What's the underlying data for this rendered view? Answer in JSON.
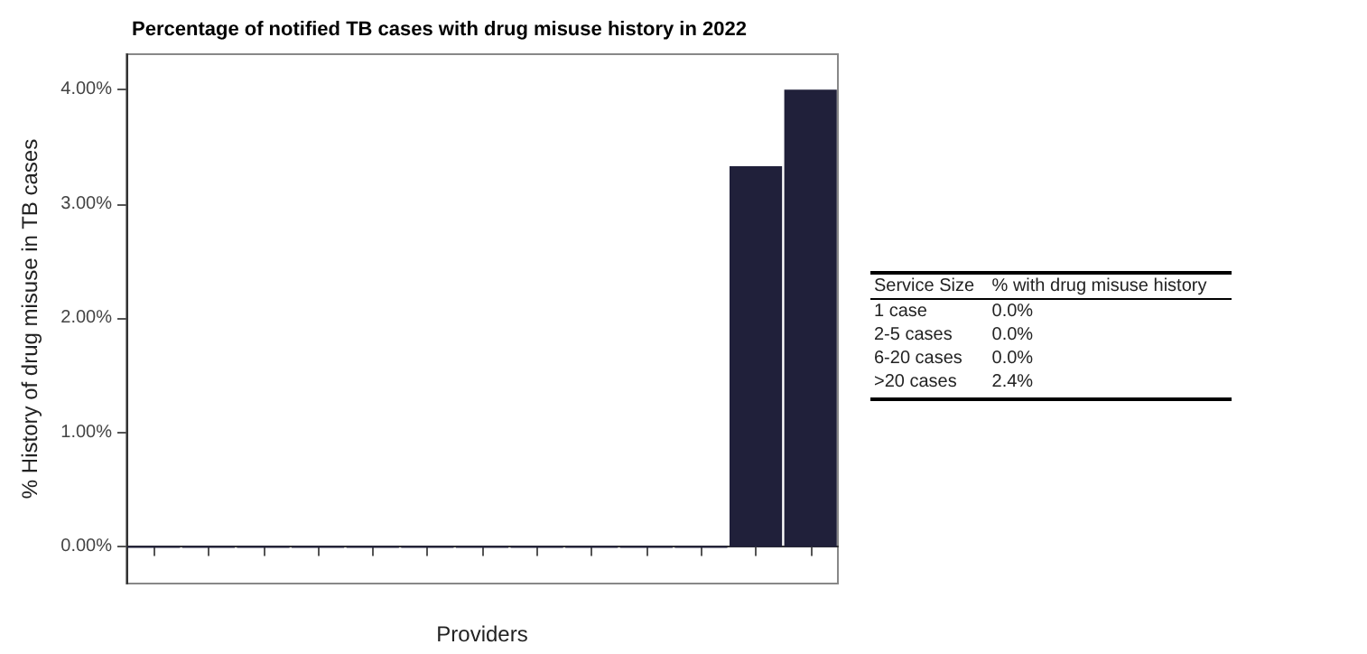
{
  "chart_data": [
    {
      "type": "bar",
      "title": "Percentage of notified TB cases with drug misuse history in 2022",
      "xlabel": "Providers",
      "ylabel": "% History of drug misuse in TB cases",
      "categories": [
        null,
        null,
        null,
        null,
        null,
        null,
        null,
        null,
        null,
        null,
        null,
        null,
        null
      ],
      "values": [
        0,
        0,
        0,
        0,
        0,
        0,
        0,
        0,
        0,
        0,
        0,
        3.33,
        4.0
      ],
      "color": "#20203a",
      "ylim": [
        -0.32,
        4.31
      ],
      "yticks": [
        {
          "value": 0,
          "label": "0.00%"
        },
        {
          "value": 1,
          "label": "1.00%"
        },
        {
          "value": 2,
          "label": "2.00%"
        },
        {
          "value": 3,
          "label": "3.00%"
        },
        {
          "value": 4,
          "label": "4.00%"
        }
      ],
      "tick_labels": "y"
    },
    {
      "type": "other",
      "xlabel": "Service Size",
      "ylabel": "% with drug misuse history",
      "categories": [
        "1 case",
        "2-5 cases",
        "6-20 cases",
        ">20 cases"
      ],
      "value_labels": [
        "0.0%",
        "0.0%",
        "0.0%",
        "2.4%"
      ]
    }
  ]
}
